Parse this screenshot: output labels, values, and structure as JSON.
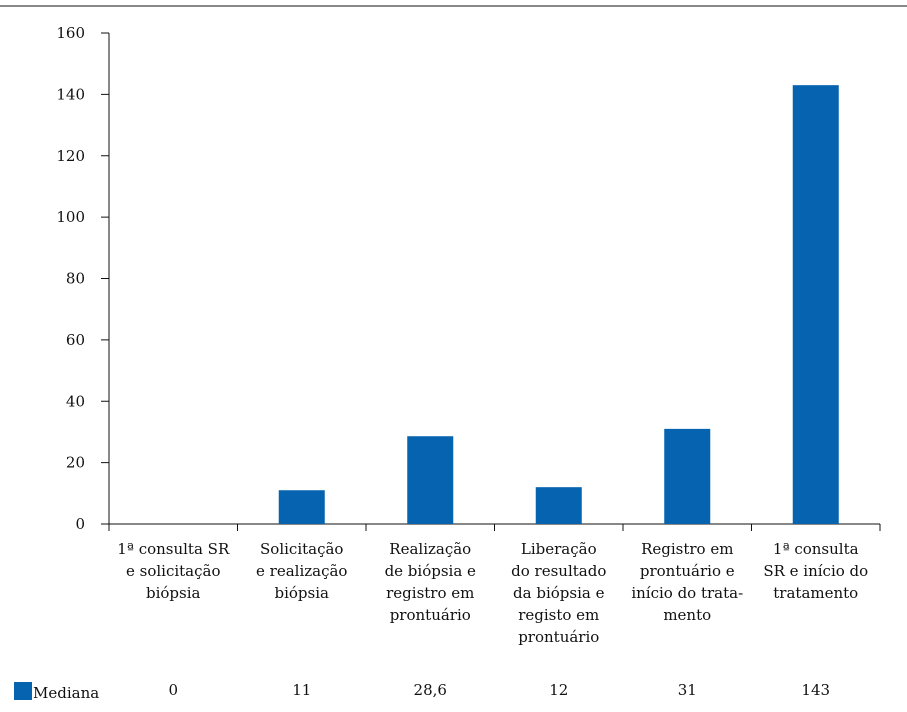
{
  "chart_data": {
    "type": "bar",
    "categories": [
      [
        "1ª consulta SR",
        "e solicitação",
        "biópsia"
      ],
      [
        "Solicitação",
        "e realização",
        "biópsia"
      ],
      [
        "Realização",
        "de biópsia e",
        "registro em",
        "prontuário"
      ],
      [
        "Liberação",
        "do resultado",
        "da biópsia e",
        "registo em",
        "prontuário"
      ],
      [
        "Registro em",
        "prontuário e",
        "início do trata-",
        "mento"
      ],
      [
        "1ª consulta",
        "SR e início do",
        "tratamento"
      ]
    ],
    "series": [
      {
        "name": "Mediana",
        "values": [
          0,
          11,
          28.6,
          12,
          31,
          143
        ],
        "value_labels": [
          "0",
          "11",
          "28,6",
          "12",
          "31",
          "143"
        ],
        "color": "#0563b0"
      }
    ],
    "ylim": [
      0,
      160
    ],
    "yticks": [
      0,
      20,
      40,
      60,
      80,
      100,
      120,
      140,
      160
    ],
    "grid": false,
    "legend": "bottom-left data table"
  }
}
